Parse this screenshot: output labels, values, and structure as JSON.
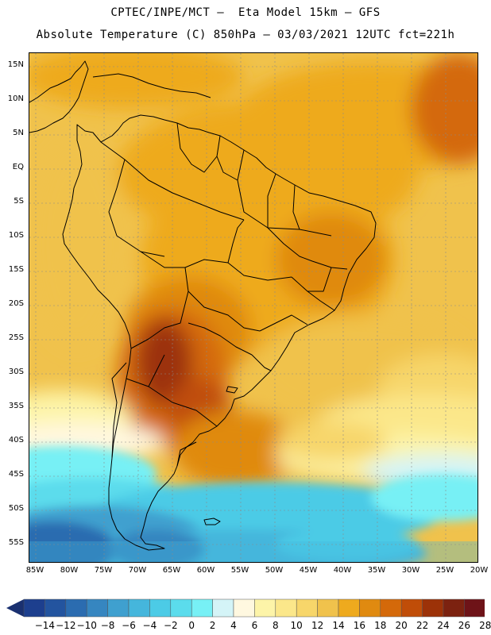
{
  "header": {
    "line1": "CPTEC/INPE/MCT –  Eta Model 15km – GFS",
    "line2": "Absolute Temperature (C) 850hPa – 03/03/2021 12UTC fct=221h"
  },
  "map": {
    "lat_labels": [
      "15N",
      "10N",
      "5N",
      "EQ",
      "5S",
      "10S",
      "15S",
      "20S",
      "25S",
      "30S",
      "35S",
      "40S",
      "45S",
      "50S",
      "55S"
    ],
    "lon_labels": [
      "85W",
      "80W",
      "75W",
      "70W",
      "65W",
      "60W",
      "55W",
      "50W",
      "45W",
      "40W",
      "35W",
      "30W",
      "25W",
      "20W"
    ]
  },
  "legend": {
    "levels": [
      "-14",
      "-12",
      "-10",
      "-8",
      "-6",
      "-4",
      "-2",
      "0",
      "2",
      "4",
      "6",
      "8",
      "10",
      "12",
      "14",
      "16",
      "18",
      "20",
      "22",
      "24",
      "26",
      "28"
    ],
    "colors": [
      "#1d3f8e",
      "#23549f",
      "#2b6cb0",
      "#3686c0",
      "#3fa0cf",
      "#45b6dc",
      "#4ccbe6",
      "#5bdcec",
      "#77f0f5",
      "#d4f4f7",
      "#fff8e0",
      "#fdf4a8",
      "#fbe78a",
      "#f7d66a",
      "#f0c24c",
      "#eeaa1e",
      "#e08a10",
      "#d4690a",
      "#c04d08",
      "#9c3208",
      "#7c2210",
      "#6e1318"
    ],
    "underflow_color": "#1a3070",
    "overflow_color": "#6a0f20"
  }
}
